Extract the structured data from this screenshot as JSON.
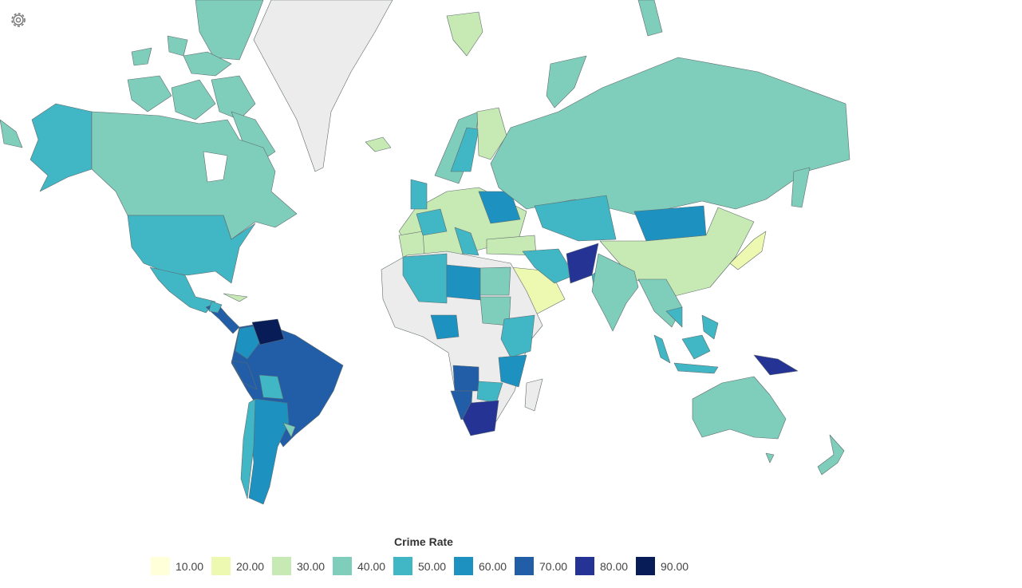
{
  "legend": {
    "title": "Crime Rate",
    "items": [
      {
        "value": 10,
        "label": "10.00",
        "color": "#ffffd9"
      },
      {
        "value": 20,
        "label": "20.00",
        "color": "#edf8b1"
      },
      {
        "value": 30,
        "label": "30.00",
        "color": "#c7e9b4"
      },
      {
        "value": 40,
        "label": "40.00",
        "color": "#7fcdbb"
      },
      {
        "value": 50,
        "label": "50.00",
        "color": "#41b6c4"
      },
      {
        "value": 60,
        "label": "60.00",
        "color": "#1d91c0"
      },
      {
        "value": 70,
        "label": "70.00",
        "color": "#225ea8"
      },
      {
        "value": 80,
        "label": "80.00",
        "color": "#253494"
      },
      {
        "value": 90,
        "label": "90.00",
        "color": "#081d58"
      }
    ]
  }
}
